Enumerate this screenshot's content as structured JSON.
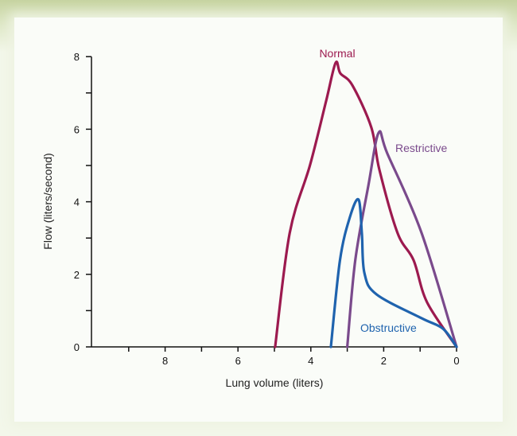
{
  "chart_data": {
    "type": "line",
    "title": "",
    "xlabel": "Lung volume (liters)",
    "ylabel": "Flow (liters/second)",
    "xlim": [
      10,
      0
    ],
    "ylim": [
      0,
      8
    ],
    "x_ticks": [
      8,
      6,
      4,
      2,
      0
    ],
    "x_minor_ticks": [
      9,
      7,
      5,
      3,
      1
    ],
    "y_ticks": [
      0,
      2,
      4,
      6,
      8
    ],
    "y_minor_ticks": [
      1,
      3,
      5,
      7
    ],
    "grid": false,
    "series": [
      {
        "name": "Normal",
        "color": "#9c1a4f",
        "x": [
          4.98,
          4.58,
          4.02,
          3.58,
          3.32,
          3.19,
          2.86,
          2.34,
          2.12,
          1.62,
          1.18,
          0.81,
          0
        ],
        "y": [
          0,
          3.14,
          5.02,
          6.78,
          7.83,
          7.54,
          7.21,
          6.05,
          4.89,
          3.14,
          2.39,
          1.23,
          0
        ]
      },
      {
        "name": "Restrictive",
        "color": "#7a4a8c",
        "x": [
          3.0,
          2.78,
          2.42,
          2.14,
          1.9,
          0.96,
          0
        ],
        "y": [
          0,
          2.39,
          4.45,
          5.9,
          5.33,
          3.14,
          0
        ]
      },
      {
        "name": "Obstructive",
        "color": "#1f63ae",
        "x": [
          3.45,
          3.2,
          2.93,
          2.69,
          2.6,
          2.53,
          2.2,
          0.96,
          0.37,
          0
        ],
        "y": [
          0,
          2.39,
          3.57,
          4.06,
          3.14,
          2.04,
          1.45,
          0.79,
          0.5,
          0
        ]
      }
    ]
  }
}
